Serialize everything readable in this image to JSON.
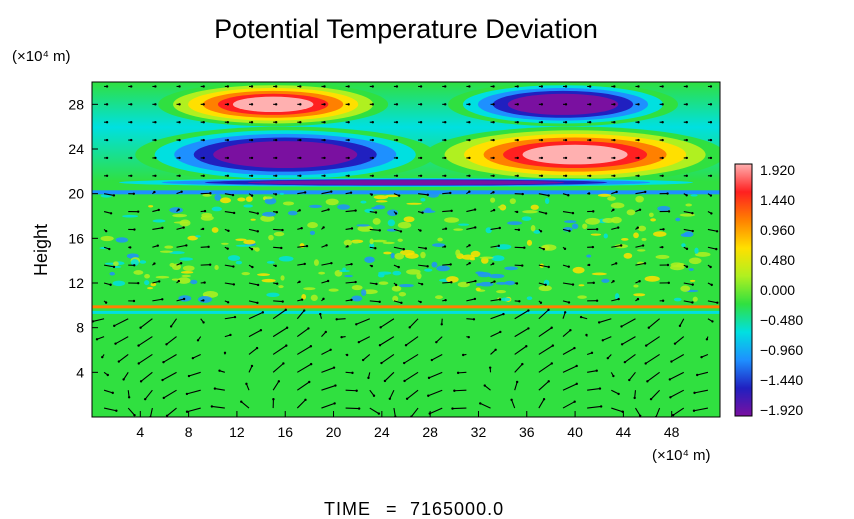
{
  "chart_data": {
    "type": "heatmap",
    "title": "Potential Temperature Deviation",
    "ylabel": "Height",
    "y_unit_label": "(×10⁴ m)",
    "x_unit_label": "(×10⁴ m)",
    "xlim": [
      0,
      52
    ],
    "ylim": [
      0,
      30
    ],
    "x_ticks": [
      4,
      8,
      12,
      16,
      20,
      24,
      28,
      32,
      36,
      40,
      44,
      48
    ],
    "y_ticks": [
      4,
      8,
      12,
      16,
      20,
      24,
      28
    ],
    "colorbar": {
      "min": -1.92,
      "max": 1.92,
      "ticks": [
        "1.920",
        "1.440",
        "0.960",
        "0.480",
        "0.000",
        "−0.480",
        "−0.960",
        "−1.440",
        "−1.920"
      ],
      "colors": [
        "#7a10a0",
        "#2020c0",
        "#1e90ff",
        "#00e0e0",
        "#30e040",
        "#b0f020",
        "#ffe000",
        "#ff8000",
        "#ff2020",
        "#ffb0b0"
      ]
    },
    "features": [
      {
        "x": 15,
        "y": 28,
        "value": 1.92
      },
      {
        "x": 39,
        "y": 28,
        "value": -1.92
      },
      {
        "x": 16,
        "y": 23.5,
        "value": -1.92
      },
      {
        "x": 40,
        "y": 23.5,
        "value": 1.92
      },
      {
        "x": 26,
        "y": 21,
        "value": -1.92
      }
    ],
    "time_label": "TIME",
    "time_value": "7165000.0"
  }
}
